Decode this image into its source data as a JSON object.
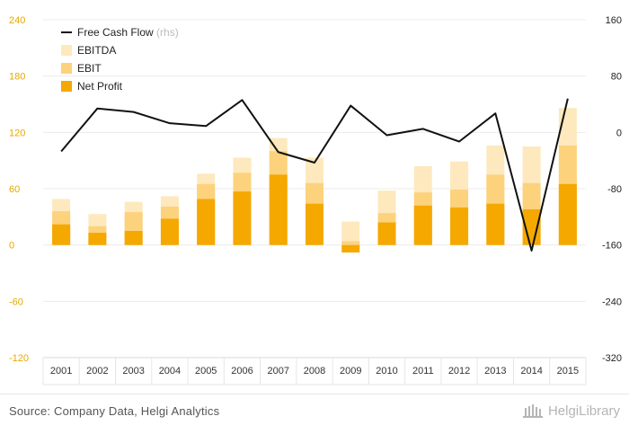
{
  "chart_data": {
    "type": "bar",
    "categories": [
      "2001",
      "2002",
      "2003",
      "2004",
      "2005",
      "2006",
      "2007",
      "2008",
      "2009",
      "2010",
      "2011",
      "2012",
      "2013",
      "2014",
      "2015"
    ],
    "series": [
      {
        "name": "Net Profit",
        "type": "bar",
        "axis": "left",
        "color": "#f5a800",
        "values": [
          22,
          13,
          15,
          28,
          49,
          57,
          75,
          44,
          -8,
          24,
          42,
          40,
          44,
          38,
          65
        ]
      },
      {
        "name": "EBIT",
        "type": "bar",
        "axis": "left",
        "color": "#fcd27d",
        "values": [
          36,
          20,
          35,
          41,
          65,
          77,
          100,
          66,
          4,
          34,
          56,
          59,
          75,
          66,
          106
        ]
      },
      {
        "name": "EBITDA",
        "type": "bar",
        "axis": "left",
        "color": "#fde9bd",
        "values": [
          49,
          33,
          46,
          52,
          76,
          93,
          114,
          93,
          25,
          58,
          84,
          89,
          106,
          105,
          146
        ]
      },
      {
        "name": "Free Cash Flow",
        "suffix": "(rhs)",
        "type": "line",
        "axis": "right",
        "color": "#111111",
        "values": [
          -27,
          34,
          29,
          13,
          9,
          46,
          -28,
          -43,
          38,
          -4,
          5,
          -13,
          27,
          -168,
          48
        ]
      }
    ],
    "y_left": {
      "min": -120,
      "max": 240,
      "ticks": [
        "240",
        "180",
        "120",
        "60",
        "0",
        "-60",
        "-120"
      ]
    },
    "y_right": {
      "min": -320,
      "max": 160,
      "ticks": [
        "160",
        "80",
        "0",
        "-80",
        "-160",
        "-240",
        "-320"
      ]
    },
    "legend_position": "top-left",
    "grid": true
  },
  "footer": {
    "source": "Source: Company Data, Helgi Analytics",
    "brand": "HelgiLibrary"
  },
  "colors": {
    "net_profit": "#f5a800",
    "ebit": "#fcd27d",
    "ebitda": "#fde9bd",
    "line": "#111111",
    "left_axis_text": "#e8a800"
  }
}
